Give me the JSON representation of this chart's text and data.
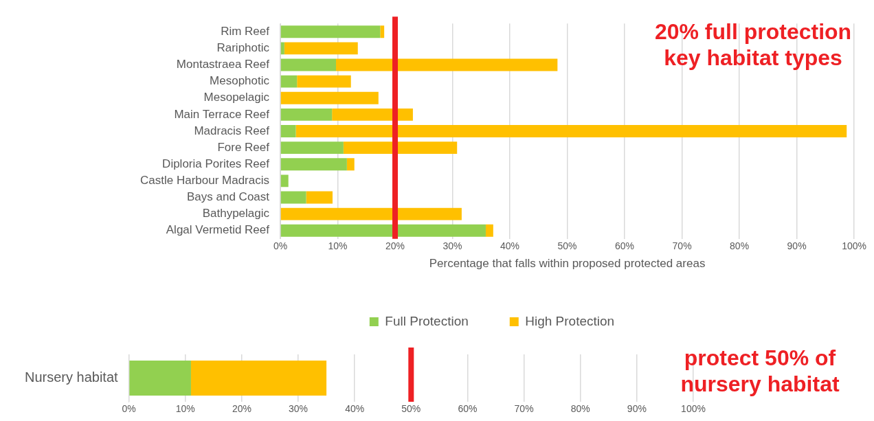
{
  "chart_data": [
    {
      "type": "bar",
      "orientation": "horizontal",
      "stacked": true,
      "xlabel": "Percentage that falls within proposed protected areas",
      "categories": [
        "Rim Reef",
        "Rariphotic",
        "Montastraea Reef",
        "Mesophotic",
        "Mesopelagic",
        "Main Terrace Reef",
        "Madracis Reef",
        "Fore Reef",
        "Diploria Porites Reef",
        "Castle Harbour Madracis",
        "Bays and Coast",
        "Bathypelagic",
        "Algal Vermetid Reef"
      ],
      "series": [
        {
          "name": "Full Protection",
          "color": "#92d050",
          "values": [
            17.4,
            0.7,
            9.7,
            2.9,
            0,
            9.0,
            2.7,
            11.0,
            11.6,
            1.4,
            4.5,
            0,
            35.8
          ]
        },
        {
          "name": "High Protection",
          "color": "#ffc000",
          "values": [
            0.7,
            12.8,
            38.6,
            9.4,
            17.1,
            14.1,
            96.0,
            19.8,
            1.3,
            0,
            4.6,
            31.6,
            1.3
          ]
        }
      ],
      "xlim": [
        0,
        100
      ],
      "xticks": [
        {
          "value": 0,
          "label": "0%"
        },
        {
          "value": 10,
          "label": "10%"
        },
        {
          "value": 20,
          "label": "20%"
        },
        {
          "value": 30,
          "label": "30%"
        },
        {
          "value": 40,
          "label": "40%"
        },
        {
          "value": 50,
          "label": "50%"
        },
        {
          "value": 60,
          "label": "60%"
        },
        {
          "value": 70,
          "label": "70%"
        },
        {
          "value": 80,
          "label": "80%"
        },
        {
          "value": 90,
          "label": "90%"
        },
        {
          "value": 100,
          "label": "100%"
        }
      ],
      "grid": "x",
      "legend": "bottom",
      "ref_lines": [
        {
          "axis": "x",
          "value": 20,
          "color": "#ee2024"
        }
      ],
      "annotations": [
        "20% full protection key habitat types"
      ]
    },
    {
      "type": "bar",
      "orientation": "horizontal",
      "stacked": true,
      "categories": [
        "Nursery habitat"
      ],
      "series": [
        {
          "color": "#92d050",
          "values": [
            11
          ]
        },
        {
          "color": "#ffc000",
          "values": [
            24
          ]
        }
      ],
      "xlim": [
        0,
        100
      ],
      "xticks": [
        {
          "value": 0,
          "label": "0%"
        },
        {
          "value": 10,
          "label": "10%"
        },
        {
          "value": 20,
          "label": "20%"
        },
        {
          "value": 30,
          "label": "30%"
        },
        {
          "value": 40,
          "label": "40%"
        },
        {
          "value": 50,
          "label": "50%"
        },
        {
          "value": 60,
          "label": "60%"
        },
        {
          "value": 70,
          "label": "70%"
        },
        {
          "value": 80,
          "label": "80%"
        },
        {
          "value": 90,
          "label": "90%"
        },
        {
          "value": 100,
          "label": "100%"
        }
      ],
      "grid": "x",
      "legend": false,
      "ref_lines": [
        {
          "axis": "x",
          "value": 50,
          "color": "#ee2024"
        }
      ],
      "annotations": [
        "protect 50% of nursery habitat"
      ]
    }
  ]
}
